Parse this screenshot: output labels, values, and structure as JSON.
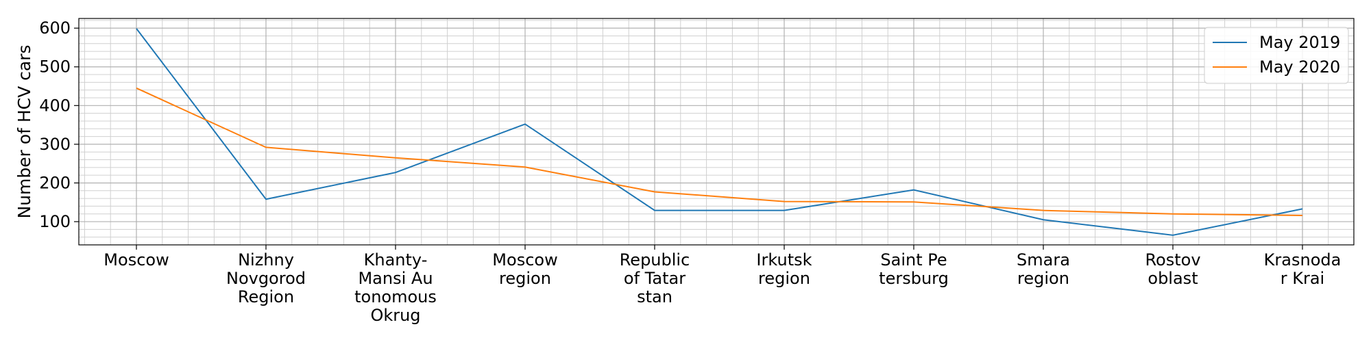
{
  "chart_data": {
    "type": "line",
    "title": "",
    "xlabel": "",
    "ylabel": "Number of HCV cars",
    "categories": [
      [
        "Moscow"
      ],
      [
        "Nizhny",
        "Novgorod",
        "Region"
      ],
      [
        "Khanty-",
        "Mansi Au",
        "tonomous",
        "Okrug"
      ],
      [
        "Moscow",
        "region"
      ],
      [
        "Republic",
        "of Tatar",
        "stan"
      ],
      [
        "Irkutsk",
        "region"
      ],
      [
        "Saint Pe",
        "tersburg"
      ],
      [
        "Smara",
        "region"
      ],
      [
        "Rostov",
        "oblast"
      ],
      [
        "Krasnoda",
        "r Krai"
      ]
    ],
    "series": [
      {
        "name": "May 2019",
        "color": "#1f77b4",
        "values": [
          599,
          158,
          227,
          352,
          129,
          129,
          182,
          105,
          65,
          133
        ]
      },
      {
        "name": "May 2020",
        "color": "#ff7f0e",
        "values": [
          445,
          292,
          265,
          241,
          177,
          152,
          151,
          129,
          120,
          116
        ]
      }
    ],
    "ylim": [
      40,
      625
    ],
    "yticks": [
      100,
      200,
      300,
      400,
      500,
      600
    ],
    "grid": true,
    "minor_grid": true,
    "legend_position": "top-right"
  }
}
